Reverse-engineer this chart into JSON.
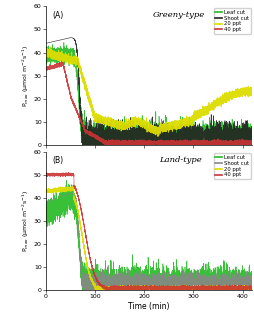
{
  "title_A": "Greeny-type",
  "title_B": "Land-type",
  "panel_A_label": "(A)",
  "panel_B_label": "(B)",
  "xlabel": "Time (min)",
  "ylim": [
    0,
    60
  ],
  "xlim": [
    0,
    420
  ],
  "yticks": [
    0,
    10,
    20,
    30,
    40,
    50,
    60
  ],
  "xticks": [
    0,
    100,
    200,
    300,
    400
  ],
  "legend_labels": [
    "Leaf cut",
    "Shoot cut",
    "20 ppt",
    "40 ppt"
  ],
  "colors": {
    "leaf_cut": "#22bb22",
    "shoot_cut": "#222222",
    "ppt20": "#dddd00",
    "ppt40": "#cc3333",
    "shoot_cut_B": "#888888"
  }
}
